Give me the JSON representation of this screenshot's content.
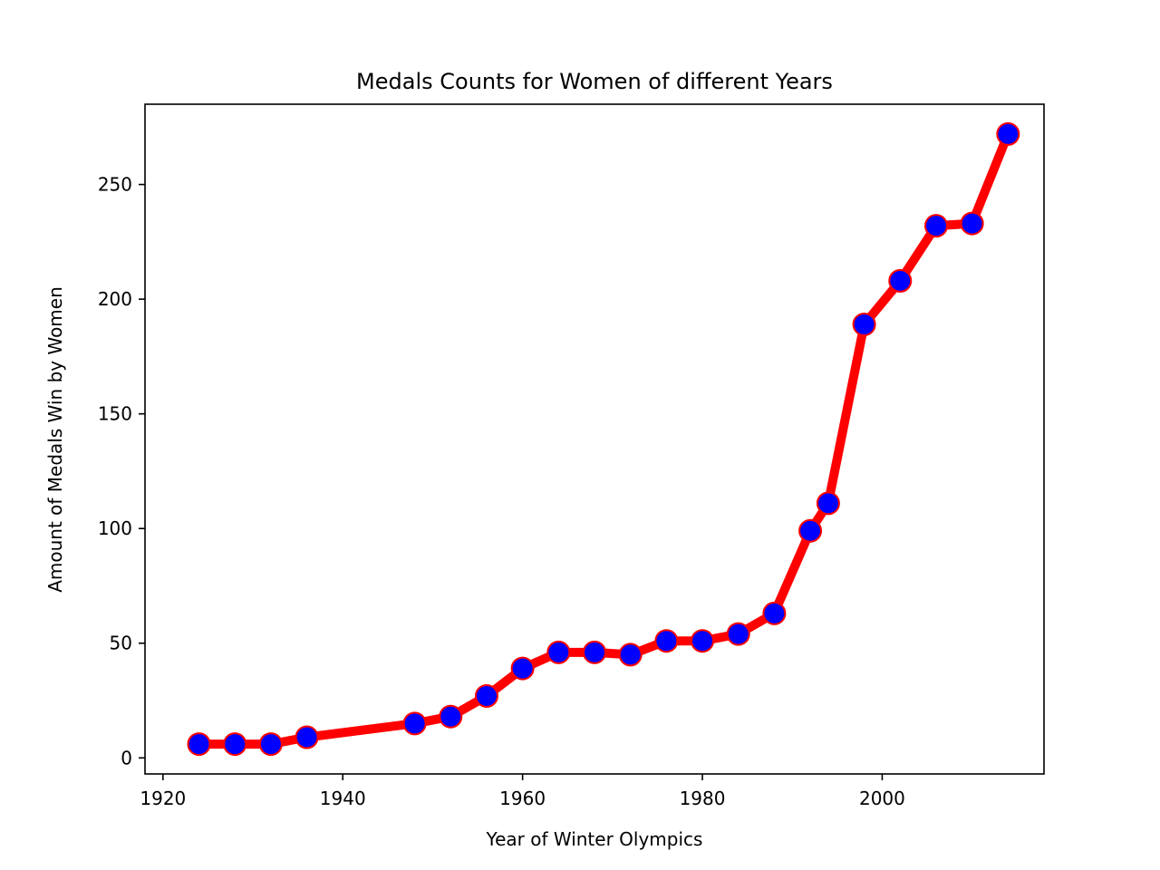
{
  "chart_data": {
    "type": "line",
    "title": "Medals Counts for Women of different Years",
    "xlabel": "Year of Winter Olympics",
    "ylabel": "Amount of Medals Win by Women",
    "xlim": [
      1918,
      2018
    ],
    "ylim": [
      -7,
      285
    ],
    "xticks": [
      1920,
      1940,
      1960,
      1980,
      2000
    ],
    "yticks": [
      0,
      50,
      100,
      150,
      200,
      250
    ],
    "grid": false,
    "legend": "none",
    "line_color": "#ff0000",
    "marker_face_color": "#0000ff",
    "marker_edge_color": "#ff0000",
    "series": [
      {
        "x": [
          1924,
          1928,
          1932,
          1936,
          1948,
          1952,
          1956,
          1960,
          1964,
          1968,
          1972,
          1976,
          1980,
          1984,
          1988,
          1992,
          1994,
          1998,
          2002,
          2006,
          2010,
          2014
        ],
        "y": [
          6,
          6,
          6,
          9,
          15,
          18,
          27,
          39,
          46,
          46,
          45,
          51,
          51,
          54,
          63,
          99,
          111,
          189,
          208,
          232,
          233,
          272
        ]
      }
    ]
  }
}
